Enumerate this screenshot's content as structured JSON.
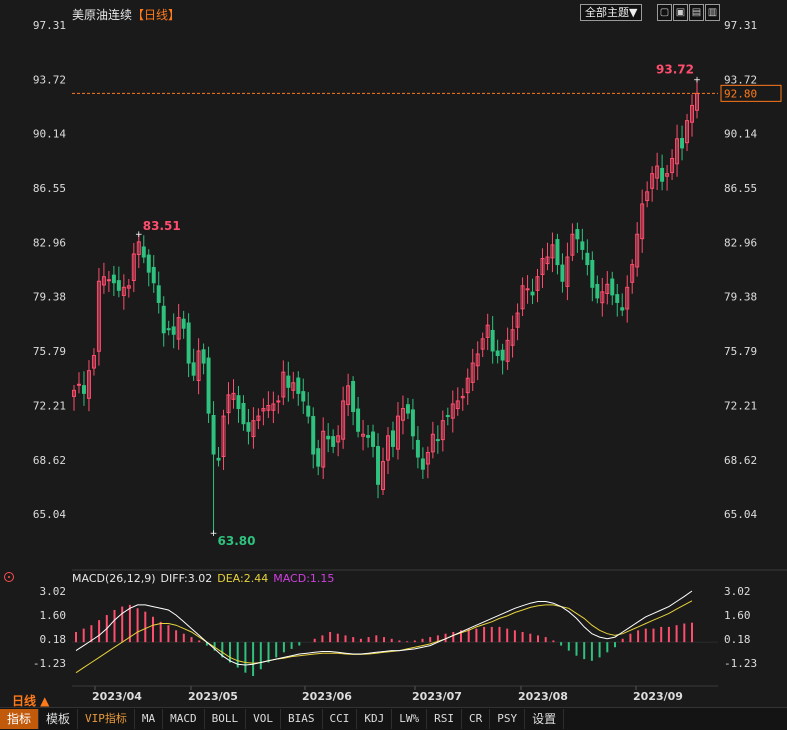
{
  "header": {
    "title": "美原油连续",
    "period_tag": "【日线】",
    "theme_button": "全部主题▼"
  },
  "colors": {
    "up": "#ff4d6d",
    "down": "#2ec27e",
    "diff": "#ffffff",
    "dea": "#e6d23c",
    "macd": "#d040e0",
    "axis_text": "#dddddd",
    "accent": "#ff7a1a"
  },
  "indicator": {
    "name": "MACD(26,12,9)",
    "diff_label": "DIFF:3.02",
    "dea_label": "DEA:2.44",
    "macd_label": "MACD:1.15"
  },
  "period_label": "日线 ▲",
  "toolbar": {
    "tabs": [
      "指标",
      "模板",
      "VIP指标",
      "MA",
      "MACD",
      "BOLL",
      "VOL",
      "BIAS",
      "CCI",
      "KDJ",
      "LW%",
      "RSI",
      "CR",
      "PSY",
      "设置"
    ]
  },
  "chart_data": [
    {
      "type": "candlestick",
      "title": "",
      "y_ticks": [
        "97.31",
        "93.72",
        "90.14",
        "86.55",
        "82.96",
        "79.38",
        "75.79",
        "72.21",
        "68.62",
        "65.04"
      ],
      "ylim": [
        62.5,
        97.31
      ],
      "x_labels": [
        "2023/04",
        "2023/05",
        "2023/06",
        "2023/07",
        "2023/08",
        "2023/09"
      ],
      "last_price": "92.80",
      "annotations": [
        {
          "text": "83.51",
          "value": 83.51,
          "type": "high"
        },
        {
          "text": "63.80",
          "value": 63.8,
          "type": "low"
        },
        {
          "text": "93.72",
          "value": 93.72,
          "type": "high"
        }
      ],
      "closes": [
        73.2,
        73.6,
        73.0,
        74.5,
        75.5,
        80.4,
        80.7,
        80.5,
        80.3,
        79.8,
        80.0,
        80.1,
        82.2,
        83.0,
        82.0,
        81.0,
        80.3,
        79.0,
        77.0,
        77.2,
        76.9,
        78.0,
        77.3,
        75.0,
        74.2,
        75.8,
        75.0,
        71.7,
        69.0,
        68.6,
        71.5,
        72.9,
        73.0,
        72.0,
        71.0,
        70.5,
        71.2,
        71.5,
        72.0,
        72.2,
        72.3,
        72.5,
        74.4,
        73.4,
        73.7,
        73.0,
        72.5,
        71.5,
        69.0,
        68.2,
        70.5,
        70.0,
        69.5,
        70.2,
        72.5,
        73.5,
        71.8,
        70.5,
        70.3,
        70.1,
        69.5,
        67.0,
        68.5,
        70.2,
        69.5,
        71.5,
        72.0,
        71.7,
        70.2,
        68.8,
        68.0,
        69.1,
        70.3,
        69.9,
        71.2,
        71.5,
        72.3,
        72.5,
        72.8,
        74.0,
        75.0,
        75.6,
        76.6,
        77.5,
        75.8,
        75.5,
        75.2,
        76.5,
        77.2,
        78.3,
        80.1,
        79.9,
        79.5,
        80.7,
        81.9,
        82.0,
        82.8,
        81.5,
        80.4,
        82.0,
        83.5,
        83.2,
        82.5,
        81.5,
        80.0,
        79.3,
        79.7,
        80.2,
        79.5,
        79.0,
        78.5,
        80.0,
        81.5,
        83.5,
        85.5,
        86.3,
        87.5,
        88.0,
        87.0,
        87.5,
        88.5,
        89.8,
        89.2,
        91.0,
        92.0,
        92.8
      ]
    },
    {
      "type": "macd",
      "y_ticks": [
        "3.02",
        "1.60",
        "0.18",
        "-1.23"
      ],
      "ylim": [
        -2.6,
        3.6
      ],
      "series": [
        {
          "name": "DIFF",
          "values": [
            -0.5,
            -0.2,
            0.1,
            0.4,
            0.8,
            1.3,
            1.7,
            2.0,
            2.2,
            2.2,
            2.1,
            2.0,
            1.9,
            1.6,
            1.2,
            0.8,
            0.4,
            0.0,
            -0.4,
            -0.8,
            -1.1,
            -1.3,
            -1.35,
            -1.3,
            -1.2,
            -1.1,
            -1.0,
            -0.9,
            -0.8,
            -0.7,
            -0.65,
            -0.6,
            -0.55,
            -0.55,
            -0.6,
            -0.65,
            -0.7,
            -0.7,
            -0.65,
            -0.6,
            -0.55,
            -0.5,
            -0.5,
            -0.45,
            -0.4,
            -0.3,
            -0.2,
            0.0,
            0.2,
            0.4,
            0.6,
            0.8,
            1.0,
            1.2,
            1.4,
            1.6,
            1.8,
            2.0,
            2.15,
            2.3,
            2.4,
            2.4,
            2.3,
            2.1,
            1.8,
            1.4,
            0.9,
            0.5,
            0.3,
            0.2,
            0.3,
            0.6,
            0.9,
            1.2,
            1.5,
            1.7,
            1.9,
            2.1,
            2.4,
            2.7,
            3.02
          ]
        },
        {
          "name": "DEA",
          "values": [
            -1.8,
            -1.5,
            -1.2,
            -0.9,
            -0.6,
            -0.3,
            0.0,
            0.3,
            0.6,
            0.8,
            1.0,
            1.1,
            1.1,
            1.0,
            0.8,
            0.6,
            0.3,
            0.0,
            -0.3,
            -0.6,
            -0.9,
            -1.1,
            -1.2,
            -1.25,
            -1.2,
            -1.1,
            -1.0,
            -0.95,
            -0.85,
            -0.8,
            -0.75,
            -0.7,
            -0.65,
            -0.65,
            -0.65,
            -0.7,
            -0.72,
            -0.72,
            -0.7,
            -0.65,
            -0.6,
            -0.55,
            -0.5,
            -0.4,
            -0.3,
            -0.2,
            -0.1,
            0.05,
            0.2,
            0.4,
            0.55,
            0.7,
            0.9,
            1.05,
            1.2,
            1.4,
            1.55,
            1.75,
            1.9,
            2.05,
            2.15,
            2.2,
            2.2,
            2.1,
            2.0,
            1.7,
            1.4,
            1.0,
            0.7,
            0.5,
            0.4,
            0.5,
            0.7,
            0.9,
            1.1,
            1.3,
            1.5,
            1.7,
            1.95,
            2.2,
            2.44
          ]
        },
        {
          "name": "MACD",
          "values": [
            0.6,
            0.8,
            1.0,
            1.3,
            1.6,
            1.9,
            2.1,
            2.2,
            2.0,
            1.8,
            1.5,
            1.2,
            1.0,
            0.7,
            0.5,
            0.3,
            0.1,
            -0.2,
            -0.5,
            -0.9,
            -1.2,
            -1.5,
            -1.8,
            -2.0,
            -1.6,
            -1.2,
            -0.9,
            -0.6,
            -0.4,
            -0.2,
            0.0,
            0.2,
            0.4,
            0.6,
            0.5,
            0.4,
            0.3,
            0.2,
            0.3,
            0.4,
            0.3,
            0.2,
            0.1,
            0.05,
            0.1,
            0.2,
            0.3,
            0.4,
            0.5,
            0.6,
            0.7,
            0.8,
            0.8,
            0.9,
            0.9,
            0.9,
            0.8,
            0.7,
            0.6,
            0.5,
            0.4,
            0.3,
            0.1,
            -0.2,
            -0.5,
            -0.8,
            -1.0,
            -1.1,
            -0.9,
            -0.6,
            -0.3,
            0.2,
            0.5,
            0.7,
            0.8,
            0.8,
            0.9,
            0.9,
            1.0,
            1.1,
            1.15
          ]
        }
      ]
    }
  ]
}
